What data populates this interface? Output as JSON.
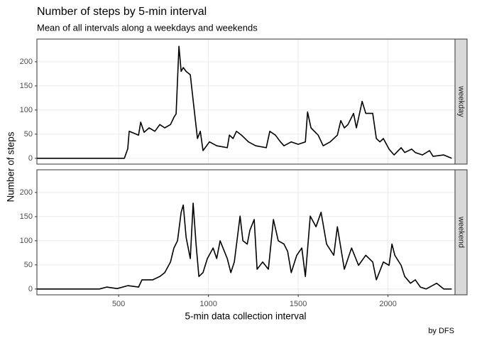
{
  "chart_data": {
    "type": "line",
    "title": "Number of steps by 5-min interval",
    "subtitle": "Mean of all intervals along a weekdays and weekends",
    "x_label": "5-min data collection interval",
    "y_label": "Number of steps",
    "caption": "by DFS",
    "color": "#000000",
    "grid": true,
    "xlim": [
      45,
      2373
    ],
    "xticks": [
      500,
      1000,
      1500,
      2000
    ],
    "ylim": [
      -12,
      247
    ],
    "yticks": [
      0,
      50,
      100,
      150,
      200
    ],
    "panels": [
      {
        "label": "weekday",
        "x": [
          45,
          532,
          551,
          559,
          611,
          623,
          642,
          670,
          702,
          729,
          757,
          789,
          808,
          820,
          836,
          848,
          860,
          876,
          899,
          919,
          939,
          955,
          970,
          1006,
          1046,
          1105,
          1117,
          1137,
          1156,
          1184,
          1223,
          1263,
          1322,
          1342,
          1373,
          1401,
          1421,
          1461,
          1500,
          1540,
          1552,
          1571,
          1611,
          1639,
          1678,
          1718,
          1737,
          1757,
          1777,
          1808,
          1824,
          1856,
          1876,
          1915,
          1935,
          1955,
          1974,
          2006,
          2034,
          2073,
          2093,
          2132,
          2152,
          2192,
          2231,
          2251,
          2310,
          2355
        ],
        "values": [
          0,
          0,
          20,
          56,
          48,
          75,
          54,
          63,
          56,
          70,
          63,
          70,
          85,
          92,
          232,
          180,
          188,
          180,
          173,
          107,
          41,
          56,
          16,
          34,
          26,
          22,
          48,
          41,
          56,
          48,
          34,
          26,
          22,
          56,
          48,
          34,
          26,
          34,
          29,
          34,
          96,
          63,
          48,
          26,
          34,
          48,
          78,
          63,
          70,
          93,
          63,
          118,
          93,
          93,
          41,
          34,
          41,
          19,
          7,
          22,
          12,
          19,
          12,
          7,
          16,
          4,
          7,
          0
        ]
      },
      {
        "label": "weekend",
        "x": [
          45,
          393,
          433,
          492,
          551,
          611,
          630,
          690,
          729,
          757,
          789,
          808,
          828,
          848,
          860,
          876,
          899,
          915,
          931,
          947,
          970,
          994,
          1026,
          1046,
          1065,
          1105,
          1125,
          1144,
          1176,
          1192,
          1216,
          1231,
          1255,
          1271,
          1302,
          1334,
          1362,
          1389,
          1421,
          1441,
          1461,
          1492,
          1520,
          1540,
          1567,
          1599,
          1627,
          1658,
          1698,
          1718,
          1757,
          1797,
          1836,
          1876,
          1915,
          1935,
          1974,
          2006,
          2022,
          2038,
          2073,
          2093,
          2125,
          2152,
          2180,
          2212,
          2271,
          2310,
          2355
        ],
        "values": [
          0,
          0,
          4,
          1,
          7,
          4,
          19,
          19,
          26,
          34,
          56,
          85,
          100,
          159,
          174,
          107,
          63,
          178,
          93,
          26,
          34,
          63,
          85,
          63,
          100,
          63,
          34,
          56,
          151,
          100,
          93,
          122,
          144,
          41,
          56,
          41,
          144,
          100,
          93,
          78,
          34,
          70,
          85,
          26,
          151,
          129,
          159,
          93,
          70,
          129,
          41,
          85,
          49,
          70,
          56,
          19,
          56,
          49,
          93,
          70,
          49,
          26,
          12,
          19,
          4,
          0,
          12,
          0,
          0
        ]
      }
    ]
  }
}
